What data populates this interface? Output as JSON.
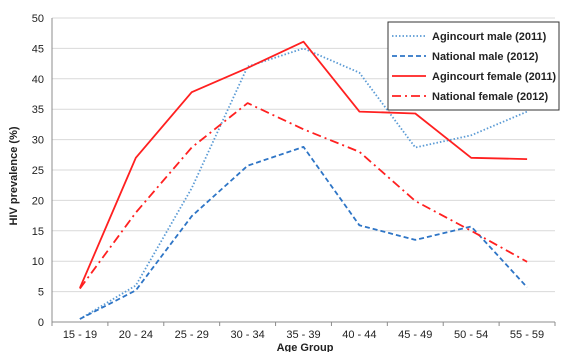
{
  "chart_data": {
    "type": "line",
    "title": "",
    "xlabel": "Age Group",
    "ylabel": "HIV prevalence (%)",
    "ylim": [
      0,
      50
    ],
    "y_ticks": [
      0,
      5,
      10,
      15,
      20,
      25,
      30,
      35,
      40,
      45,
      50
    ],
    "grid": {
      "horizontal": true,
      "vertical": false
    },
    "legend_position": "top-right",
    "categories": [
      "15 - 19",
      "20 - 24",
      "25 - 29",
      "30 - 34",
      "35 - 39",
      "40 - 44",
      "45 - 49",
      "50 - 54",
      "55 - 59"
    ],
    "series": [
      {
        "name": "Agincourt male (2011)",
        "color": "#5b9bd5",
        "dash": "dotted",
        "values": [
          0.5,
          6.0,
          22.0,
          42.0,
          45.0,
          41.0,
          28.7,
          30.7,
          34.6
        ]
      },
      {
        "name": "National male (2012)",
        "color": "#2e75c6",
        "dash": "dashed",
        "values": [
          0.5,
          5.2,
          17.4,
          25.7,
          28.8,
          15.9,
          13.5,
          15.7,
          5.7
        ]
      },
      {
        "name": "Agincourt female (2011)",
        "color": "#ff2020",
        "dash": "solid",
        "values": [
          5.6,
          27.0,
          37.8,
          41.8,
          46.1,
          34.6,
          34.3,
          27.0,
          26.8
        ]
      },
      {
        "name": "National female (2012)",
        "color": "#ff2020",
        "dash": "dashdot",
        "values": [
          5.5,
          18.0,
          28.7,
          36.0,
          31.7,
          28.0,
          19.9,
          15.0,
          9.9
        ]
      }
    ]
  }
}
